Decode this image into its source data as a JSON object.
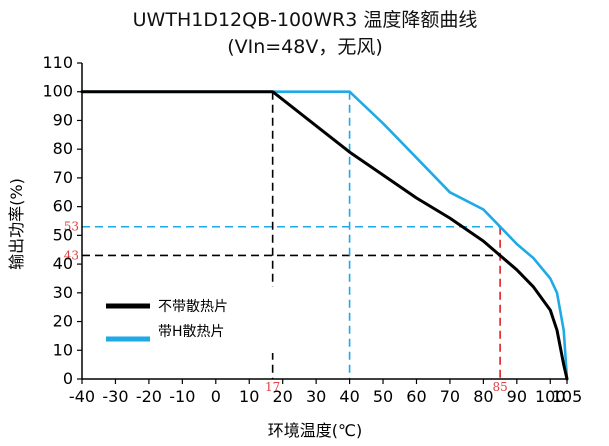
{
  "chart_data": {
    "type": "line",
    "title": "UWTH1D12QB-100WR3 温度降额曲线",
    "subtitle": "(VIn=48V，无风)",
    "xlabel": "环境温度(℃)",
    "ylabel": "输出功率(%)",
    "xlim": [
      -40,
      105
    ],
    "ylim": [
      0,
      110
    ],
    "xticks": [
      -40,
      -30,
      -20,
      -10,
      0,
      10,
      20,
      30,
      40,
      50,
      60,
      70,
      80,
      90,
      100,
      105
    ],
    "yticks": [
      0,
      10,
      20,
      30,
      40,
      50,
      60,
      70,
      80,
      90,
      100,
      110
    ],
    "legend_position": "lower-left",
    "series": [
      {
        "name": "不带散热片",
        "color": "#000000",
        "points": [
          [
            -40,
            100
          ],
          [
            17,
            100
          ],
          [
            40,
            79
          ],
          [
            50,
            71
          ],
          [
            60,
            63
          ],
          [
            70,
            56
          ],
          [
            80,
            48
          ],
          [
            85,
            43
          ],
          [
            90,
            38
          ],
          [
            95,
            32
          ],
          [
            100,
            24
          ],
          [
            102,
            17
          ],
          [
            104,
            5
          ],
          [
            105,
            0
          ]
        ]
      },
      {
        "name": "带H散热片",
        "color": "#1eaae6",
        "points": [
          [
            -40,
            100
          ],
          [
            40,
            100
          ],
          [
            50,
            89
          ],
          [
            60,
            77
          ],
          [
            70,
            65
          ],
          [
            80,
            59
          ],
          [
            85,
            53
          ],
          [
            90,
            47
          ],
          [
            95,
            42
          ],
          [
            100,
            35
          ],
          [
            102,
            30
          ],
          [
            104,
            17
          ],
          [
            105,
            0
          ]
        ]
      }
    ],
    "annotations": [
      {
        "axis": "y",
        "value": 53,
        "label": "53",
        "color": "#1eaae6",
        "line_color": "#1eaae6",
        "label_color": "#e04040",
        "x_to": 85
      },
      {
        "axis": "y",
        "value": 43,
        "label": "43",
        "color": "#000000",
        "line_color": "#000000",
        "label_color": "#e04040",
        "x_to": 85
      },
      {
        "axis": "x",
        "value": 17,
        "label": "17",
        "line_color": "#000000",
        "label_color": "#e04040",
        "y_to": 100
      },
      {
        "axis": "x",
        "value": 40,
        "label": "",
        "line_color": "#1eaae6",
        "label_color": "#e04040",
        "y_to": 100
      },
      {
        "axis": "x",
        "value": 85,
        "label": "85",
        "line_color": "#e02020",
        "label_color": "#e04040",
        "y_to": 53
      }
    ]
  }
}
